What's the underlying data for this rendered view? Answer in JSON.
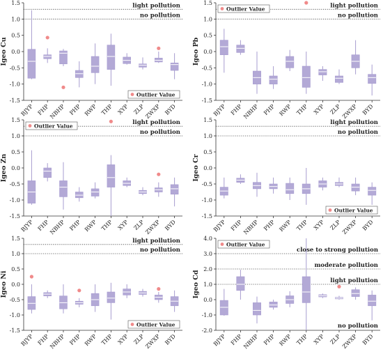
{
  "chart_data": [
    {
      "type": "box",
      "ylabel": "Igeo  Cu",
      "ylim": [
        -1.5,
        1.5
      ],
      "yticks": [
        -1.5,
        -1.0,
        -0.5,
        0.0,
        0.5,
        1.0,
        1.5
      ],
      "categories": [
        "BJYP",
        "FHP",
        "NBHP",
        "PHP",
        "RWP",
        "THP",
        "XYP",
        "ZLP",
        "ZWXP",
        "BYD"
      ],
      "boxes": [
        {
          "min": -0.85,
          "q1": -0.82,
          "median": -0.3,
          "q3": 0.07,
          "max": 1.27
        },
        {
          "min": -0.35,
          "q1": -0.22,
          "median": -0.15,
          "q3": -0.1,
          "max": 0.1
        },
        {
          "min": -0.45,
          "q1": -0.38,
          "median": -0.05,
          "q3": 0.02,
          "max": 0.08
        },
        {
          "min": -1.1,
          "q1": -0.8,
          "median": -0.68,
          "q3": -0.58,
          "max": -0.3
        },
        {
          "min": -1.0,
          "q1": -0.65,
          "median": -0.45,
          "q3": -0.15,
          "max": 0.25
        },
        {
          "min": -1.05,
          "q1": -0.55,
          "median": -0.15,
          "q3": 0.2,
          "max": 0.55
        },
        {
          "min": -0.4,
          "q1": -0.37,
          "median": -0.27,
          "q3": -0.17,
          "max": -0.05
        },
        {
          "min": -0.55,
          "q1": -0.48,
          "median": -0.42,
          "q3": -0.38,
          "max": -0.18
        },
        {
          "min": -0.35,
          "q1": -0.32,
          "median": -0.27,
          "q3": -0.2,
          "max": 0.0
        },
        {
          "min": -0.85,
          "q1": -0.58,
          "median": -0.4,
          "q3": -0.35,
          "max": -0.05
        }
      ],
      "outliers": [
        {
          "category": "FHP",
          "value": 0.43
        },
        {
          "category": "NBHP",
          "value": -1.1
        },
        {
          "category": "ZWXP",
          "value": 0.1
        }
      ],
      "reference_lines": [
        {
          "y": 1.3,
          "label": "light pollution"
        },
        {
          "y": 1.0,
          "label": "no pollution"
        }
      ],
      "legend": {
        "label": "Outlier Value",
        "placement": "bottom-right"
      }
    },
    {
      "type": "box",
      "ylabel": "Igeo  Pb",
      "ylim": [
        -1.5,
        1.5
      ],
      "yticks": [
        -1.5,
        -1.0,
        -0.5,
        0.0,
        0.5,
        1.0,
        1.5
      ],
      "categories": [
        "BJYP",
        "FHP",
        "NBHP",
        "PHP",
        "RWP",
        "THP",
        "XYP",
        "ZLP",
        "ZWXP",
        "BYD"
      ],
      "boxes": [
        {
          "min": -0.65,
          "q1": -0.1,
          "median": 0.15,
          "q3": 0.35,
          "max": 0.7
        },
        {
          "min": -0.1,
          "q1": -0.03,
          "median": 0.1,
          "q3": 0.2,
          "max": 0.35
        },
        {
          "min": -1.3,
          "q1": -1.0,
          "median": -0.8,
          "q3": -0.6,
          "max": 0.0
        },
        {
          "min": -1.15,
          "q1": -1.0,
          "median": -0.85,
          "q3": -0.75,
          "max": -0.45
        },
        {
          "min": -0.6,
          "q1": -0.5,
          "median": -0.3,
          "q3": -0.15,
          "max": 0.05
        },
        {
          "min": -1.3,
          "q1": -1.1,
          "median": -0.8,
          "q3": -0.45,
          "max": 0.0
        },
        {
          "min": -0.9,
          "q1": -0.72,
          "median": -0.62,
          "q3": -0.55,
          "max": -0.45
        },
        {
          "min": -1.0,
          "q1": -0.95,
          "median": -0.82,
          "q3": -0.75,
          "max": -0.55
        },
        {
          "min": -0.7,
          "q1": -0.5,
          "median": -0.3,
          "q3": -0.1,
          "max": 0.35
        },
        {
          "min": -1.35,
          "q1": -0.98,
          "median": -0.8,
          "q3": -0.7,
          "max": -0.4
        }
      ],
      "outliers": [
        {
          "category": "THP",
          "value": 1.5
        }
      ],
      "reference_lines": [
        {
          "y": 1.3,
          "label": "light pollution"
        },
        {
          "y": 1.0,
          "label": "no pollution"
        }
      ],
      "legend": {
        "label": "Outlier Value",
        "placement": "top-left"
      }
    },
    {
      "type": "box",
      "ylabel": "Igeo  Zn",
      "ylim": [
        -1.5,
        1.5
      ],
      "yticks": [
        -1.5,
        -1.0,
        -0.5,
        0.0,
        0.5,
        1.0,
        1.5
      ],
      "categories": [
        "BJYP",
        "FHP",
        "NBHP",
        "PHP",
        "RWP",
        "THP",
        "XYP",
        "ZLP",
        "ZWXP",
        "BYD"
      ],
      "boxes": [
        {
          "min": -1.15,
          "q1": -1.1,
          "median": -0.75,
          "q3": -0.4,
          "max": 0.55
        },
        {
          "min": -0.42,
          "q1": -0.3,
          "median": -0.1,
          "q3": 0.0,
          "max": 0.15
        },
        {
          "min": -1.3,
          "q1": -0.9,
          "median": -0.6,
          "q3": -0.4,
          "max": 0.18
        },
        {
          "min": -1.05,
          "q1": -0.93,
          "median": -0.85,
          "q3": -0.75,
          "max": -0.6
        },
        {
          "min": -0.95,
          "q1": -0.88,
          "median": -0.75,
          "q3": -0.65,
          "max": -0.45
        },
        {
          "min": -1.5,
          "q1": -0.6,
          "median": -0.3,
          "q3": 0.1,
          "max": 0.4
        },
        {
          "min": -0.6,
          "q1": -0.55,
          "median": -0.48,
          "q3": -0.4,
          "max": -0.3
        },
        {
          "min": -0.85,
          "q1": -0.8,
          "median": -0.75,
          "q3": -0.7,
          "max": -0.6
        },
        {
          "min": -0.9,
          "q1": -0.75,
          "median": -0.68,
          "q3": -0.62,
          "max": -0.45
        },
        {
          "min": -1.2,
          "q1": -0.82,
          "median": -0.65,
          "q3": -0.52,
          "max": -0.3
        }
      ],
      "outliers": [
        {
          "category": "THP",
          "value": 1.45
        },
        {
          "category": "ZWXP",
          "value": -0.2
        }
      ],
      "reference_lines": [
        {
          "y": 1.3,
          "label": "light pollution"
        },
        {
          "y": 1.0,
          "label": "no pollution"
        }
      ],
      "legend": {
        "label": "Outlier Value",
        "placement": "top-left"
      }
    },
    {
      "type": "box",
      "ylabel": "Igeo  Cr",
      "ylim": [
        -1.5,
        1.5
      ],
      "yticks": [
        -1.5,
        -1.0,
        -0.5,
        0.0,
        0.5,
        1.0,
        1.5
      ],
      "categories": [
        "BJYP",
        "FHP",
        "NBHP",
        "PHP",
        "RWP",
        "THP",
        "XYP",
        "ZLP",
        "ZWXP",
        "BYD"
      ],
      "boxes": [
        {
          "min": -0.95,
          "q1": -0.85,
          "median": -0.72,
          "q3": -0.6,
          "max": -0.3
        },
        {
          "min": -0.5,
          "q1": -0.45,
          "median": -0.38,
          "q3": -0.32,
          "max": -0.2
        },
        {
          "min": -0.9,
          "q1": -0.65,
          "median": -0.55,
          "q3": -0.45,
          "max": -0.15
        },
        {
          "min": -0.8,
          "q1": -0.65,
          "median": -0.58,
          "q3": -0.5,
          "max": -0.3
        },
        {
          "min": -1.0,
          "q1": -0.8,
          "median": -0.68,
          "q3": -0.48,
          "max": -0.3
        },
        {
          "min": -1.15,
          "q1": -0.8,
          "median": -0.65,
          "q3": -0.5,
          "max": 0.0
        },
        {
          "min": -0.7,
          "q1": -0.6,
          "median": -0.5,
          "q3": -0.4,
          "max": -0.3
        },
        {
          "min": -0.6,
          "q1": -0.55,
          "median": -0.5,
          "q3": -0.45,
          "max": -0.3
        },
        {
          "min": -0.85,
          "q1": -0.72,
          "median": -0.6,
          "q3": -0.5,
          "max": -0.3
        },
        {
          "min": -1.15,
          "q1": -0.85,
          "median": -0.7,
          "q3": -0.6,
          "max": -0.45
        }
      ],
      "outliers": [],
      "reference_lines": [
        {
          "y": 1.3,
          "label": "light pollution"
        },
        {
          "y": 1.0,
          "label": "no pollution"
        }
      ],
      "legend": {
        "label": "Outlier Value",
        "placement": "bottom-right"
      }
    },
    {
      "type": "box",
      "ylabel": "Igeo  Ni",
      "ylim": [
        -1.5,
        1.5
      ],
      "yticks": [
        -1.5,
        -1.0,
        -0.5,
        0.0,
        0.5,
        1.0,
        1.5
      ],
      "categories": [
        "BJYP",
        "FHP",
        "NBHP",
        "PHP",
        "RWP",
        "THP",
        "XYP",
        "ZLP",
        "ZWXP",
        "BYD"
      ],
      "boxes": [
        {
          "min": -0.95,
          "q1": -0.82,
          "median": -0.62,
          "q3": -0.4,
          "max": 0.0
        },
        {
          "min": -0.45,
          "q1": -0.38,
          "median": -0.32,
          "q3": -0.27,
          "max": -0.2
        },
        {
          "min": -0.95,
          "q1": -0.8,
          "median": -0.6,
          "q3": -0.38,
          "max": 0.0
        },
        {
          "min": -0.75,
          "q1": -0.65,
          "median": -0.6,
          "q3": -0.55,
          "max": -0.45
        },
        {
          "min": -0.9,
          "q1": -0.7,
          "median": -0.5,
          "q3": -0.3,
          "max": 0.0
        },
        {
          "min": -1.15,
          "q1": -0.6,
          "median": -0.45,
          "q3": -0.25,
          "max": 0.05
        },
        {
          "min": -0.45,
          "q1": -0.35,
          "median": -0.25,
          "q3": -0.15,
          "max": 0.0
        },
        {
          "min": -0.4,
          "q1": -0.33,
          "median": -0.28,
          "q3": -0.23,
          "max": -0.15
        },
        {
          "min": -0.6,
          "q1": -0.5,
          "median": -0.42,
          "q3": -0.35,
          "max": -0.25
        },
        {
          "min": -0.9,
          "q1": -0.7,
          "median": -0.55,
          "q3": -0.4,
          "max": -0.2
        }
      ],
      "outliers": [
        {
          "category": "BJYP",
          "value": 0.25
        },
        {
          "category": "PHP",
          "value": -0.2
        },
        {
          "category": "ZWXP",
          "value": -0.15
        }
      ],
      "reference_lines": [
        {
          "y": 1.3,
          "label": "light pollution"
        },
        {
          "y": 1.0,
          "label": "no pollution"
        }
      ],
      "legend": {
        "label": "Outlier Value",
        "placement": "bottom-right"
      }
    },
    {
      "type": "box",
      "ylabel": "Igeo  Cd",
      "ylim": [
        -2.0,
        4.0
      ],
      "yticks": [
        -2.0,
        -1.0,
        0.0,
        1.0,
        2.0,
        3.0,
        4.0
      ],
      "categories": [
        "BJYP",
        "FHP",
        "NBHP",
        "PHP",
        "RWP",
        "THP",
        "XYP",
        "ZLP",
        "ZWXP",
        "BYD"
      ],
      "boxes": [
        {
          "min": -1.05,
          "q1": -1.0,
          "median": -0.5,
          "q3": -0.05,
          "max": 0.7
        },
        {
          "min": 0.0,
          "q1": 0.6,
          "median": 1.0,
          "q3": 1.5,
          "max": 1.95
        },
        {
          "min": -1.55,
          "q1": -1.0,
          "median": -0.7,
          "q3": -0.2,
          "max": 0.2
        },
        {
          "min": -0.65,
          "q1": -0.5,
          "median": -0.35,
          "q3": -0.15,
          "max": 0.0
        },
        {
          "min": -0.5,
          "q1": -0.25,
          "median": 0.0,
          "q3": 0.25,
          "max": 0.55
        },
        {
          "min": -2.0,
          "q1": -0.2,
          "median": 0.5,
          "q3": 1.5,
          "max": 4.0
        },
        {
          "min": 0.1,
          "q1": 0.18,
          "median": 0.25,
          "q3": 0.32,
          "max": 0.4
        },
        {
          "min": 0.0,
          "q1": 0.05,
          "median": 0.1,
          "q3": 0.15,
          "max": 0.25
        },
        {
          "min": 0.0,
          "q1": 0.2,
          "median": 0.4,
          "q3": 0.65,
          "max": 0.8
        },
        {
          "min": -1.35,
          "q1": -0.4,
          "median": -0.1,
          "q3": 0.3,
          "max": 0.6
        }
      ],
      "outliers": [
        {
          "category": "ZLP",
          "value": 0.85
        }
      ],
      "reference_lines": [
        {
          "y": 3.0,
          "label": "close to strong pollution"
        },
        {
          "y": 2.0,
          "label": "moderate pollution"
        },
        {
          "y": 1.0,
          "label": "light pollution"
        },
        {
          "y": -2.0,
          "label": "no pollution"
        }
      ],
      "legend": {
        "label": "Outlier Value",
        "placement": "top-left"
      }
    }
  ]
}
